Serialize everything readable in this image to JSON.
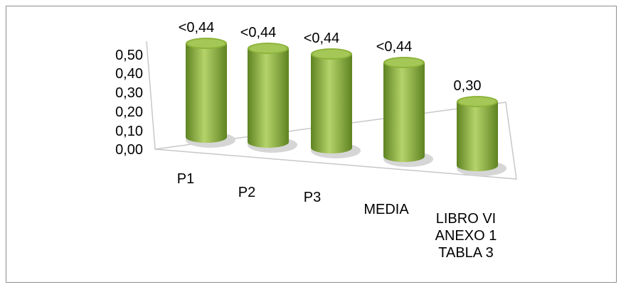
{
  "chart_data": {
    "type": "bar",
    "title": "",
    "xlabel": "",
    "ylabel": "",
    "ylim": [
      0,
      0.5
    ],
    "yticks": [
      "0,00",
      "0,10",
      "0,20",
      "0,30",
      "0,40",
      "0,50"
    ],
    "categories": [
      [
        "P1"
      ],
      [
        "P2"
      ],
      [
        "P3"
      ],
      [
        "MEDIA"
      ],
      [
        "LIBRO VI",
        "ANEXO 1",
        "TABLA 3"
      ]
    ],
    "values": [
      0.44,
      0.44,
      0.44,
      0.44,
      0.3
    ],
    "data_labels": [
      "<0,44",
      "<0,44",
      "<0,44",
      "<0,44",
      "0,30"
    ],
    "bar_shape": "cylinder",
    "grid": false,
    "legend": "none",
    "colors": {
      "bar_light": "#b5d36a",
      "bar_mid": "#8db43b",
      "bar_dark": "#5f8322",
      "axis": "#c8c8c8"
    }
  }
}
